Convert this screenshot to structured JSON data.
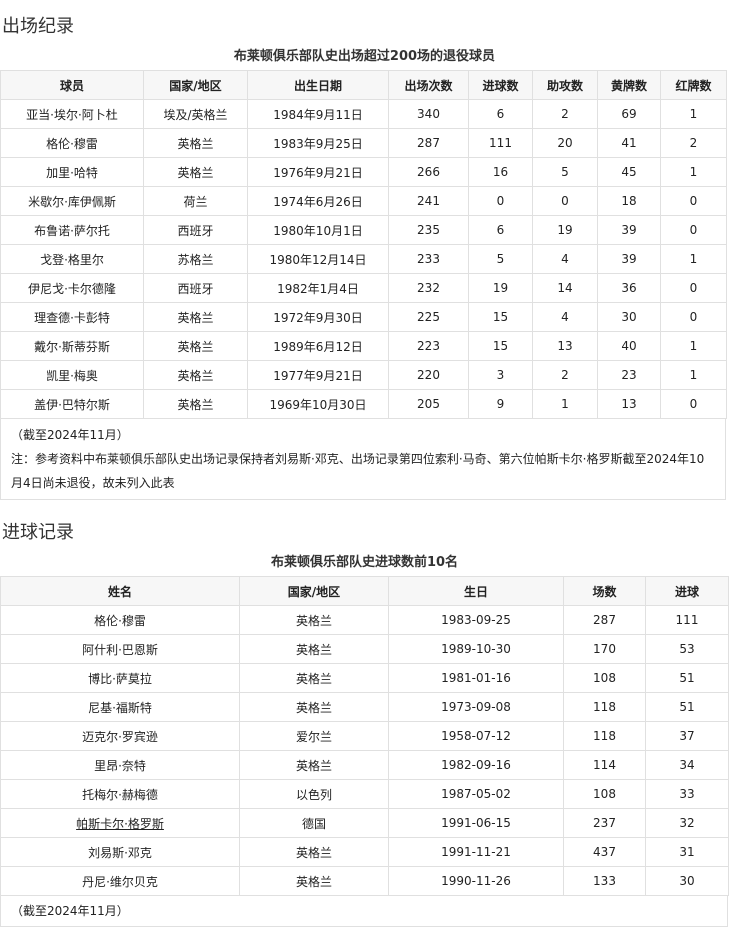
{
  "section1": {
    "heading": "出场纪录",
    "caption": "布莱顿俱乐部队史出场超过200场的退役球员",
    "headers": [
      "球员",
      "国家/地区",
      "出生日期",
      "出场次数",
      "进球数",
      "助攻数",
      "黄牌数",
      "红牌数"
    ],
    "rows": [
      [
        "亚当·埃尔·阿卜杜",
        "埃及/英格兰",
        "1984年9月11日",
        "340",
        "6",
        "2",
        "69",
        "1"
      ],
      [
        "格伦·穆雷",
        "英格兰",
        "1983年9月25日",
        "287",
        "111",
        "20",
        "41",
        "2"
      ],
      [
        "加里·哈特",
        "英格兰",
        "1976年9月21日",
        "266",
        "16",
        "5",
        "45",
        "1"
      ],
      [
        "米歇尔·库伊佩斯",
        "荷兰",
        "1974年6月26日",
        "241",
        "0",
        "0",
        "18",
        "0"
      ],
      [
        "布鲁诺·萨尔托",
        "西班牙",
        "1980年10月1日",
        "235",
        "6",
        "19",
        "39",
        "0"
      ],
      [
        "戈登·格里尔",
        "苏格兰",
        "1980年12月14日",
        "233",
        "5",
        "4",
        "39",
        "1"
      ],
      [
        "伊尼戈·卡尔德隆",
        "西班牙",
        "1982年1月4日",
        "232",
        "19",
        "14",
        "36",
        "0"
      ],
      [
        "理查德·卡彭特",
        "英格兰",
        "1972年9月30日",
        "225",
        "15",
        "4",
        "30",
        "0"
      ],
      [
        "戴尔·斯蒂芬斯",
        "英格兰",
        "1989年6月12日",
        "223",
        "15",
        "13",
        "40",
        "1"
      ],
      [
        "凯里·梅奥",
        "英格兰",
        "1977年9月21日",
        "220",
        "3",
        "2",
        "23",
        "1"
      ],
      [
        "盖伊·巴特尔斯",
        "英格兰",
        "1969年10月30日",
        "205",
        "9",
        "1",
        "13",
        "0"
      ]
    ],
    "as_of": "（截至2024年11月）",
    "note": "注：参考资料中布莱顿俱乐部队史出场记录保持者刘易斯·邓克、出场记录第四位索利·马奇、第六位帕斯卡尔·格罗斯截至2024年10月4日尚未退役，故未列入此表"
  },
  "section2": {
    "heading": "进球记录",
    "caption": "布莱顿俱乐部队史进球数前10名",
    "headers": [
      "姓名",
      "国家/地区",
      "生日",
      "场数",
      "进球"
    ],
    "rows": [
      [
        "格伦·穆雷",
        "英格兰",
        "1983-09-25",
        "287",
        "111"
      ],
      [
        "阿什利·巴恩斯",
        "英格兰",
        "1989-10-30",
        "170",
        "53"
      ],
      [
        "博比·萨莫拉",
        "英格兰",
        "1981-01-16",
        "108",
        "51"
      ],
      [
        "尼基·福斯特",
        "英格兰",
        "1973-09-08",
        "118",
        "51"
      ],
      [
        "迈克尔·罗宾逊",
        "爱尔兰",
        "1958-07-12",
        "118",
        "37"
      ],
      [
        "里昂·奈特",
        "英格兰",
        "1982-09-16",
        "114",
        "34"
      ],
      [
        "托梅尔·赫梅德",
        "以色列",
        "1987-05-02",
        "108",
        "33"
      ],
      [
        "帕斯卡尔·格罗斯",
        "德国",
        "1991-06-15",
        "237",
        "32"
      ],
      [
        "刘易斯·邓克",
        "英格兰",
        "1991-11-21",
        "437",
        "31"
      ],
      [
        "丹尼·维尔贝克",
        "英格兰",
        "1990-11-26",
        "133",
        "30"
      ]
    ],
    "linked_row": 7,
    "as_of": "（截至2024年11月）"
  }
}
